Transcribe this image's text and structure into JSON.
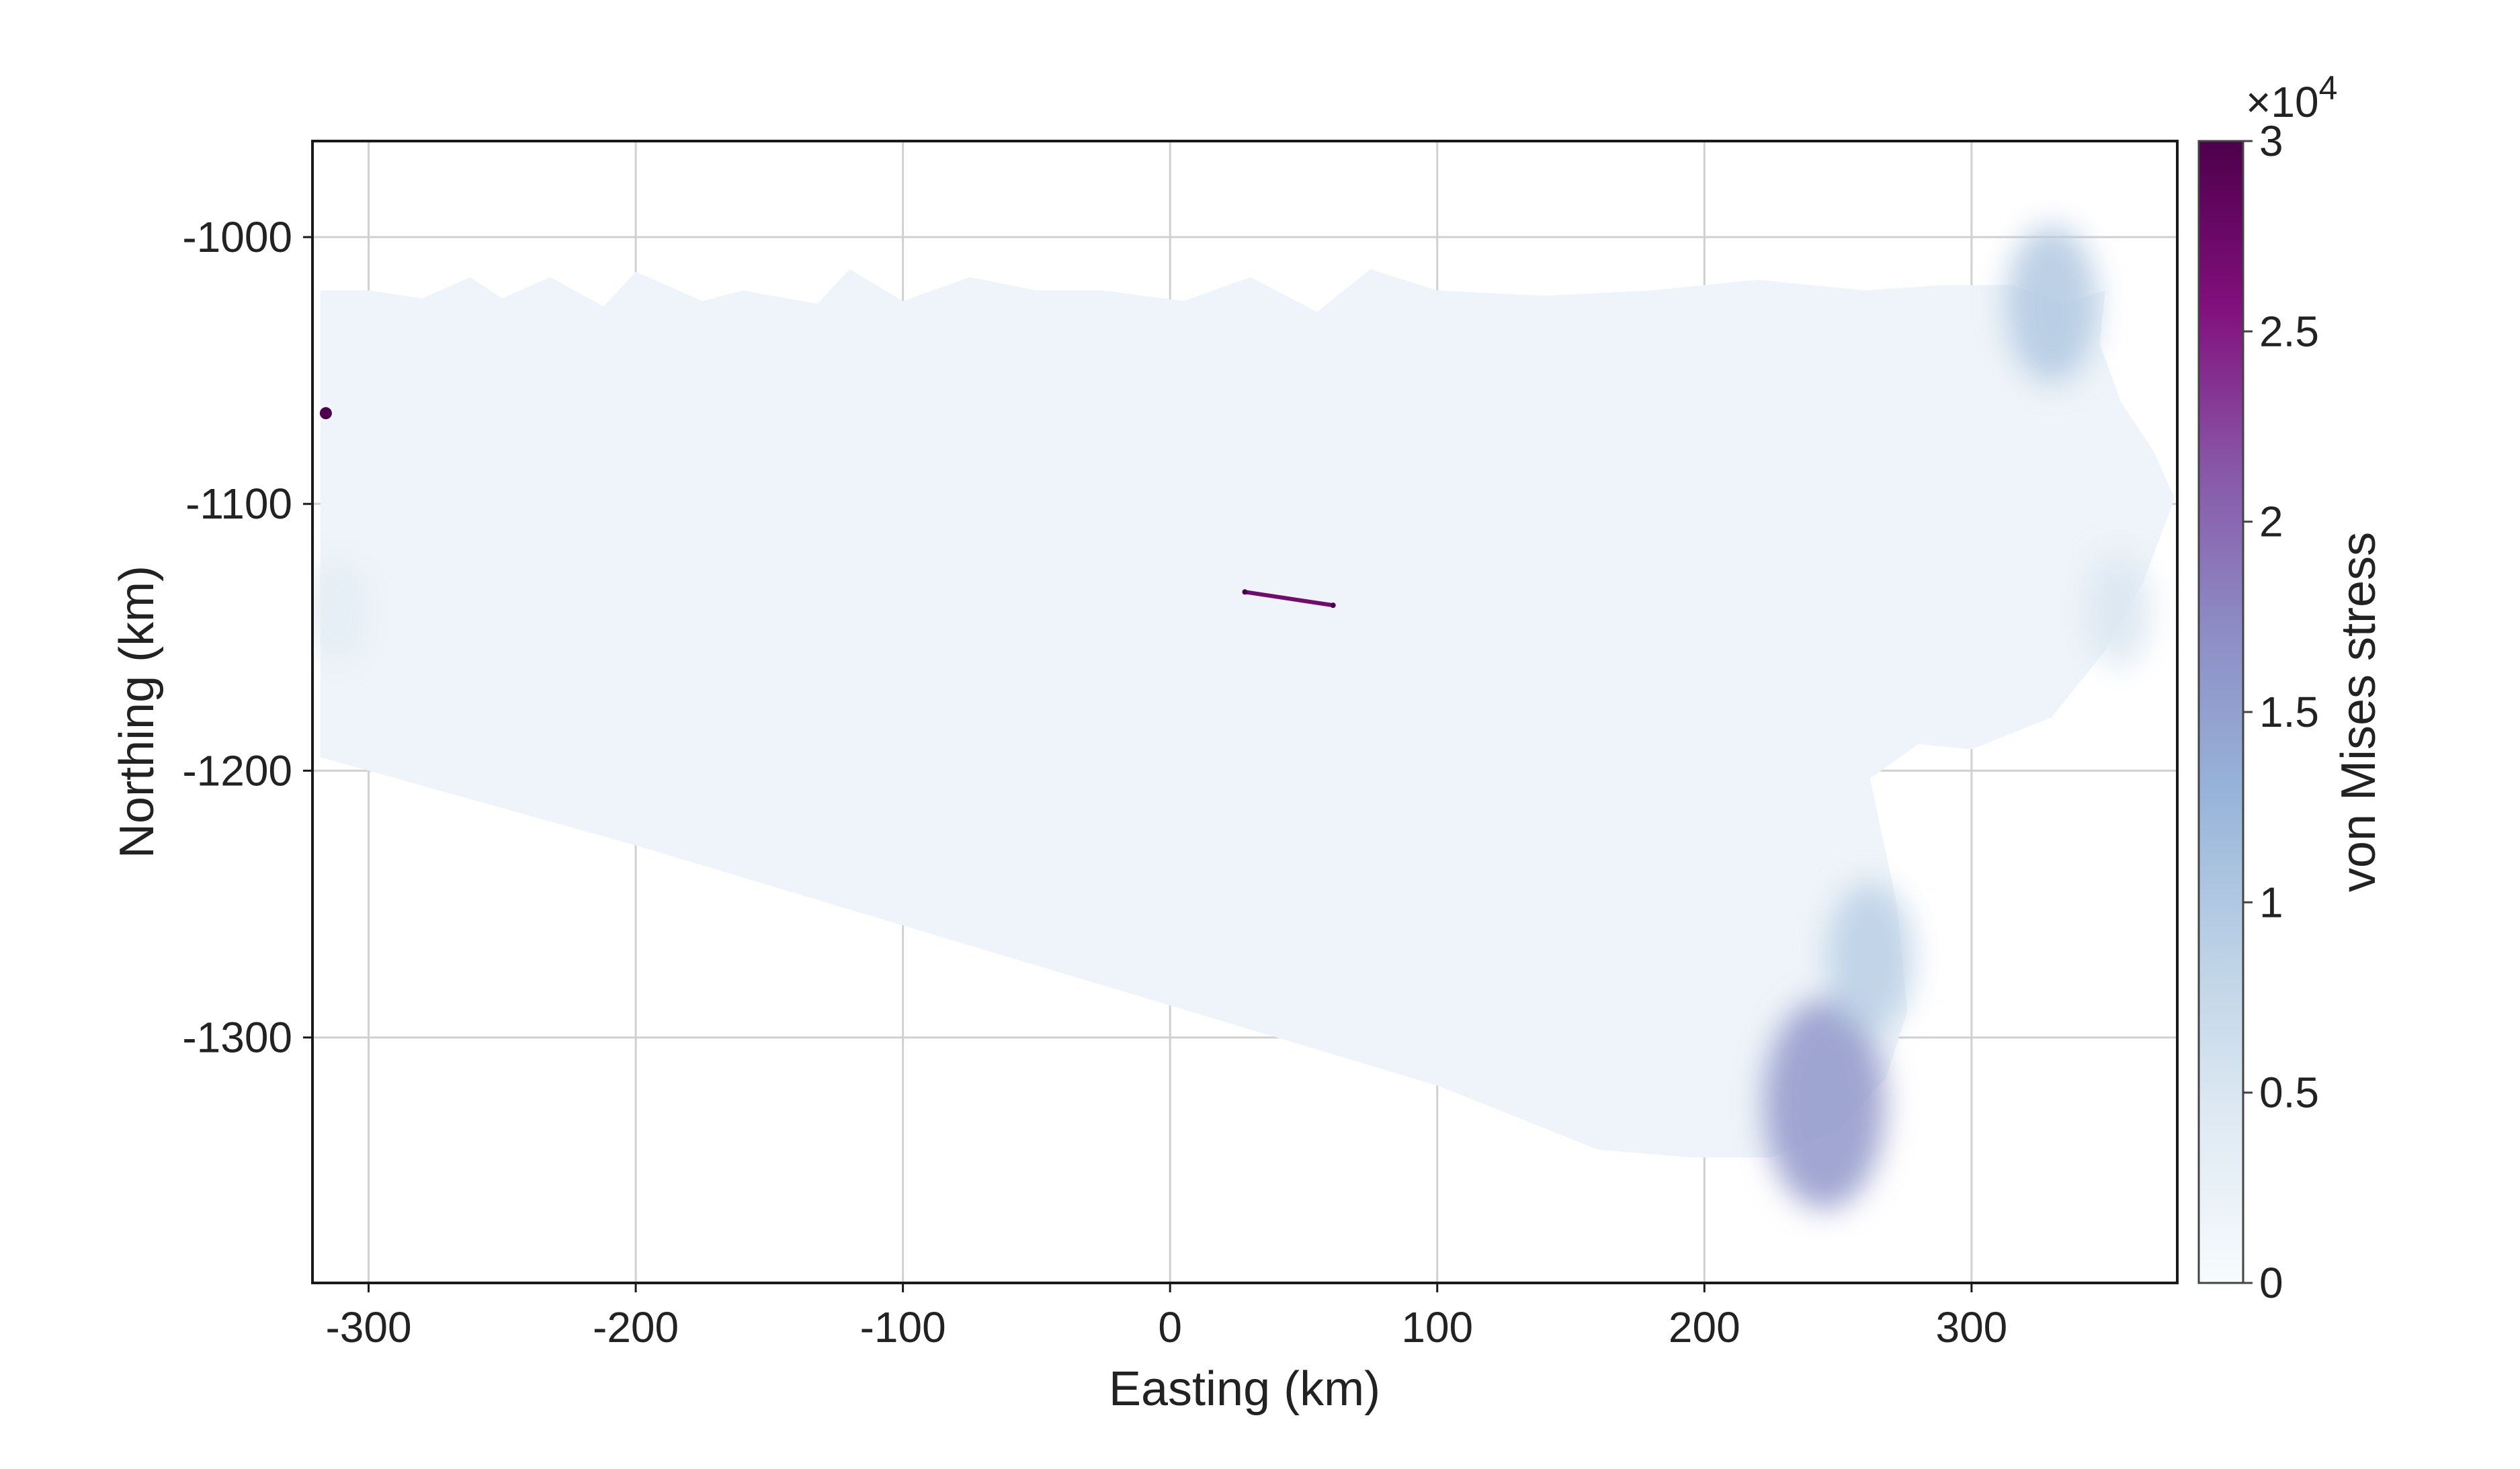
{
  "chart_data": {
    "type": "heatmap",
    "title": "",
    "xlabel": "Easting (km)",
    "ylabel": "Northing (km)",
    "xlim": [
      -321,
      377
    ],
    "ylim": [
      -1392,
      -964
    ],
    "xticks": [
      -300,
      -200,
      -100,
      0,
      100,
      200,
      300
    ],
    "xtick_labels": [
      "-300",
      "-200",
      "-100",
      "0",
      "100",
      "200",
      "300"
    ],
    "yticks": [
      -1000,
      -1100,
      -1200,
      -1300
    ],
    "ytick_labels": [
      "-1000",
      "-1100",
      "-1200",
      "-1300"
    ],
    "grid": true,
    "colorbar": {
      "label": "von Mises stress",
      "multiplier": "×10",
      "exponent": "4",
      "range": [
        0,
        30000
      ],
      "ticks": [
        0,
        5000,
        10000,
        15000,
        20000,
        25000,
        30000
      ],
      "tick_labels": [
        "0",
        "0.5",
        "1",
        "1.5",
        "2",
        "2.5",
        "3"
      ],
      "colormap": [
        "#f7fbfd",
        "#dfeaf3",
        "#bdd2e6",
        "#97b4d9",
        "#8d8dc5",
        "#8856a7",
        "#810f7c",
        "#4d004b"
      ]
    },
    "domain_outline": [
      [
        -318,
        -1020
      ],
      [
        -300,
        -1020
      ],
      [
        -280,
        -1023
      ],
      [
        -262,
        -1015
      ],
      [
        -250,
        -1023
      ],
      [
        -232,
        -1015
      ],
      [
        -212,
        -1026
      ],
      [
        -200,
        -1013
      ],
      [
        -175,
        -1024
      ],
      [
        -160,
        -1020
      ],
      [
        -132,
        -1025
      ],
      [
        -120,
        -1012
      ],
      [
        -100,
        -1024
      ],
      [
        -75,
        -1015
      ],
      [
        -50,
        -1020
      ],
      [
        -25,
        -1020
      ],
      [
        5,
        -1024
      ],
      [
        30,
        -1015
      ],
      [
        55,
        -1028
      ],
      [
        75,
        -1012
      ],
      [
        100,
        -1020
      ],
      [
        140,
        -1022
      ],
      [
        180,
        -1020
      ],
      [
        220,
        -1016
      ],
      [
        260,
        -1020
      ],
      [
        290,
        -1018
      ],
      [
        315,
        -1018
      ],
      [
        335,
        -1025
      ],
      [
        350,
        -1020
      ],
      [
        348,
        -1040
      ],
      [
        356,
        -1062
      ],
      [
        368,
        -1080
      ],
      [
        376,
        -1098
      ],
      [
        364,
        -1130
      ],
      [
        350,
        -1155
      ],
      [
        330,
        -1180
      ],
      [
        300,
        -1192
      ],
      [
        280,
        -1190
      ],
      [
        262,
        -1203
      ],
      [
        272,
        -1250
      ],
      [
        276,
        -1290
      ],
      [
        268,
        -1315
      ],
      [
        250,
        -1335
      ],
      [
        225,
        -1345
      ],
      [
        195,
        -1345
      ],
      [
        160,
        -1342
      ],
      [
        100,
        -1318
      ],
      [
        0,
        -1288
      ],
      [
        -100,
        -1258
      ],
      [
        -200,
        -1228
      ],
      [
        -300,
        -1200
      ],
      [
        -318,
        -1195
      ]
    ],
    "stress_features": [
      {
        "name": "western-edge-high",
        "x": -316,
        "y": -1066,
        "value": 30000
      },
      {
        "name": "western-edge-zone",
        "x": -312,
        "y": -1140,
        "value": 3500
      },
      {
        "name": "central-rift-line",
        "x": [
          28,
          61
        ],
        "y": [
          -1133,
          -1138
        ],
        "value": 27000
      },
      {
        "name": "southeast-margin-high",
        "x": 245,
        "y": -1325,
        "value": 16000
      },
      {
        "name": "southeast-margin-zone",
        "x": 262,
        "y": -1270,
        "value": 9000
      },
      {
        "name": "northeast-margin-zone",
        "x": 330,
        "y": -1025,
        "value": 10000
      },
      {
        "name": "east-lobe-zone",
        "x": 355,
        "y": -1140,
        "value": 5000
      }
    ]
  }
}
